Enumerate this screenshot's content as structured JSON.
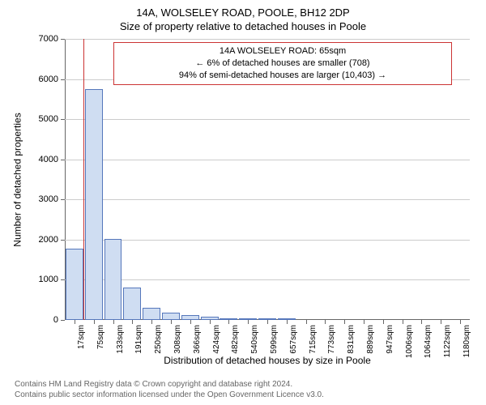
{
  "chart": {
    "type": "histogram",
    "title_main": "14A, WOLSELEY ROAD, POOLE, BH12 2DP",
    "title_sub": "Size of property relative to detached houses in Poole",
    "title_fontsize": 13,
    "info_box": {
      "line1": "14A WOLSELEY ROAD: 65sqm",
      "line2": "← 6% of detached houses are smaller (708)",
      "line3": "94% of semi-detached houses are larger (10,403) →",
      "border_color": "#cc3333",
      "fontsize": 11
    },
    "ylabel": "Number of detached properties",
    "xlabel": "Distribution of detached houses by size in Poole",
    "ylim": [
      0,
      7000
    ],
    "yticks": [
      0,
      1000,
      2000,
      3000,
      4000,
      5000,
      6000,
      7000
    ],
    "xticks_labels": [
      "17sqm",
      "75sqm",
      "133sqm",
      "191sqm",
      "250sqm",
      "308sqm",
      "366sqm",
      "424sqm",
      "482sqm",
      "540sqm",
      "599sqm",
      "657sqm",
      "715sqm",
      "773sqm",
      "831sqm",
      "889sqm",
      "947sqm",
      "1006sqm",
      "1064sqm",
      "1122sqm",
      "1180sqm"
    ],
    "bar_categories": [
      "17",
      "75",
      "133",
      "191",
      "250",
      "308",
      "366",
      "424",
      "482",
      "540",
      "599",
      "657",
      "715",
      "773",
      "831",
      "889",
      "947",
      "1006",
      "1064",
      "1122",
      "1180"
    ],
    "bar_values": [
      1780,
      5740,
      2020,
      810,
      300,
      180,
      115,
      75,
      50,
      50,
      50,
      50,
      0,
      0,
      0,
      0,
      0,
      0,
      0,
      0,
      0
    ],
    "bar_fill_color": "#cfddf2",
    "bar_border_color": "#5577bb",
    "bar_width_ratio": 0.92,
    "marker_line": {
      "position_ratio": 0.046,
      "color": "#cc3333"
    },
    "grid_color": "#cccccc",
    "axis_color": "#666666",
    "background_color": "#ffffff",
    "axis_fontsize": 11,
    "xtick_fontsize": 10
  },
  "footer": {
    "line1": "Contains HM Land Registry data © Crown copyright and database right 2024.",
    "line2": "Contains public sector information licensed under the Open Government Licence v3.0.",
    "color": "#666666",
    "fontsize": 10
  }
}
